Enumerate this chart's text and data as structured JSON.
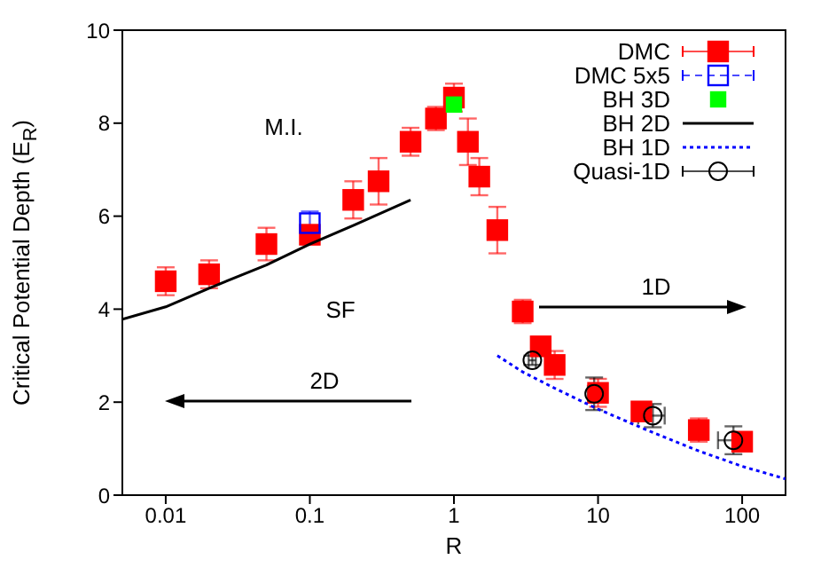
{
  "chart_data": {
    "type": "scatter",
    "xlabel": "R",
    "ylabel": "Critical Potential Depth (E$_{R}$)",
    "log": "x",
    "xlim": [
      0.005,
      200
    ],
    "xticks": [
      0.01,
      0.1,
      1,
      10,
      100
    ],
    "ylim": [
      0,
      10
    ],
    "yticks": [
      0,
      2,
      4,
      6,
      8,
      10
    ],
    "grid": false,
    "legend": "top right",
    "annotations": [
      "M.I.",
      "SF",
      "2D",
      "1D"
    ],
    "series": [
      {
        "name": "DMC",
        "marker": "square",
        "color": "#ff0000",
        "x": [
          0.01,
          0.02,
          0.05,
          0.1,
          0.2,
          0.3,
          0.5,
          0.75,
          1,
          1.25,
          1.5,
          2,
          3,
          4,
          5,
          10,
          20,
          50,
          100
        ],
        "values": [
          4.6,
          4.75,
          5.4,
          5.6,
          6.35,
          6.75,
          7.6,
          8.1,
          8.55,
          7.6,
          6.85,
          5.7,
          3.95,
          3.2,
          2.8,
          2.2,
          1.8,
          1.4,
          1.15
        ],
        "errors": [
          0.3,
          0.3,
          0.35,
          0.2,
          0.4,
          0.5,
          0.3,
          0.25,
          0.3,
          0.5,
          0.4,
          0.5,
          0.25,
          0.2,
          0.3,
          0.3,
          0.2,
          0.25,
          0.1
        ]
      },
      {
        "name": "DMC 5x5",
        "marker": "square",
        "line_style": "dashed",
        "color": "#0000ff",
        "x": [
          0.1
        ],
        "values": [
          5.85
        ],
        "errors": [
          0.25
        ]
      },
      {
        "name": "BH 3D",
        "marker": "square",
        "color": "#00ff00",
        "x": [
          1
        ],
        "values": [
          8.4
        ]
      },
      {
        "name": "BH 2D",
        "type": "line",
        "marker": "none",
        "line_style": "solid",
        "color": "#000000",
        "x": [
          0.005,
          0.01,
          0.02,
          0.05,
          0.1,
          0.2,
          0.5
        ],
        "values": [
          3.78,
          4.05,
          4.45,
          4.95,
          5.4,
          5.8,
          6.35
        ]
      },
      {
        "name": "BH 1D",
        "type": "line",
        "marker": "none",
        "line_style": "dotted",
        "color": "#0000ff",
        "x": [
          2,
          3,
          5,
          10,
          20,
          50,
          100,
          200
        ],
        "values": [
          3.0,
          2.65,
          2.3,
          1.85,
          1.45,
          0.95,
          0.62,
          0.35
        ]
      },
      {
        "name": "Quasi-1D",
        "marker": "circle",
        "color": "#000000",
        "x": [
          3.5,
          9.4,
          24,
          87
        ],
        "values": [
          2.9,
          2.18,
          1.71,
          1.18
        ],
        "errors": [
          0.1,
          0.35,
          0.25,
          0.3
        ],
        "xerrors": [
          [
            3.3,
            3.7
          ],
          [
            8.5,
            10.5
          ],
          [
            19,
            29
          ],
          [
            68,
            105
          ]
        ]
      }
    ]
  }
}
